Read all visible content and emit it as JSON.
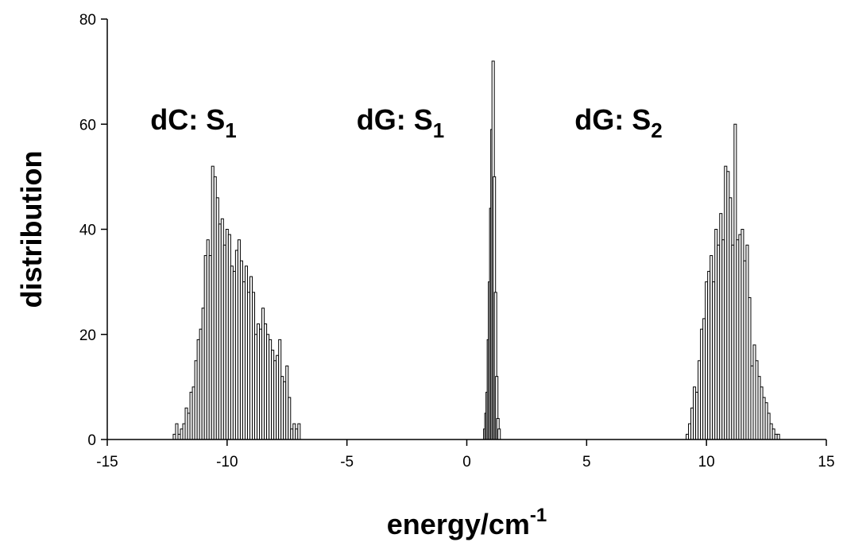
{
  "chart_data": {
    "type": "bar",
    "xlabel": {
      "text": "energy/cm",
      "superscript": "-1"
    },
    "ylabel": "distribution",
    "xlim": [
      -15,
      15
    ],
    "ylim": [
      0,
      80
    ],
    "x_ticks": [
      "-15",
      "-10",
      "-5",
      "0",
      "5",
      "10",
      "15"
    ],
    "y_ticks": [
      "0",
      "20",
      "40",
      "60",
      "80"
    ],
    "grid": false,
    "bar_width": 0.1,
    "colors": {
      "bar_fill": "#ffffff",
      "bar_stroke": "#000000",
      "axis": "#000000"
    },
    "annotations": [
      {
        "text": "dC: S",
        "sub": "1",
        "x": -13.2,
        "y": 59
      },
      {
        "text": "dG: S",
        "sub": "1",
        "x": -4.6,
        "y": 59
      },
      {
        "text": "dG: S",
        "sub": "2",
        "x": 4.5,
        "y": 59
      }
    ],
    "series": [
      {
        "name": "dC: S1",
        "x": [
          -12.2,
          -12.1,
          -12.0,
          -11.9,
          -11.8,
          -11.7,
          -11.6,
          -11.5,
          -11.4,
          -11.3,
          -11.2,
          -11.1,
          -11.0,
          -10.9,
          -10.8,
          -10.7,
          -10.6,
          -10.5,
          -10.4,
          -10.3,
          -10.2,
          -10.1,
          -10.0,
          -9.9,
          -9.8,
          -9.7,
          -9.6,
          -9.5,
          -9.4,
          -9.3,
          -9.2,
          -9.1,
          -9.0,
          -8.9,
          -8.8,
          -8.7,
          -8.6,
          -8.5,
          -8.4,
          -8.3,
          -8.2,
          -8.1,
          -8.0,
          -7.9,
          -7.8,
          -7.7,
          -7.6,
          -7.5,
          -7.4,
          -7.3,
          -7.2,
          -7.1,
          -7.0
        ],
        "values": [
          1,
          3,
          1,
          2,
          3,
          6,
          5,
          9,
          10,
          15,
          19,
          21,
          25,
          35,
          38,
          35,
          52,
          50,
          46,
          41,
          42,
          37,
          40,
          39,
          33,
          32,
          36,
          38,
          34,
          30,
          33,
          28,
          31,
          28,
          20,
          22,
          21,
          25,
          22,
          20,
          19,
          17,
          15,
          16,
          19,
          12,
          11,
          14,
          8,
          2,
          3,
          2,
          3
        ]
      },
      {
        "name": "dG: S1",
        "x": [
          0.75,
          0.8,
          0.85,
          0.9,
          0.95,
          1.0,
          1.05,
          1.1,
          1.15,
          1.2,
          1.25,
          1.3,
          1.35
        ],
        "values": [
          2,
          5,
          9,
          19,
          30,
          44,
          59,
          72,
          50,
          28,
          12,
          4,
          2
        ]
      },
      {
        "name": "dG: S2",
        "x": [
          9.2,
          9.3,
          9.4,
          9.5,
          9.6,
          9.7,
          9.8,
          9.9,
          10.0,
          10.1,
          10.2,
          10.3,
          10.4,
          10.5,
          10.6,
          10.7,
          10.8,
          10.9,
          11.0,
          11.1,
          11.2,
          11.3,
          11.4,
          11.5,
          11.6,
          11.7,
          11.8,
          11.9,
          12.0,
          12.1,
          12.2,
          12.3,
          12.4,
          12.5,
          12.6,
          12.7,
          12.8,
          12.9,
          13.0
        ],
        "values": [
          1,
          3,
          6,
          10,
          9,
          15,
          21,
          23,
          30,
          32,
          35,
          30,
          40,
          37,
          43,
          38,
          52,
          51,
          46,
          37,
          60,
          38,
          39,
          40,
          34,
          37,
          27,
          14,
          18,
          15,
          12,
          10,
          8,
          7,
          5,
          3,
          2,
          1,
          1
        ]
      }
    ]
  }
}
